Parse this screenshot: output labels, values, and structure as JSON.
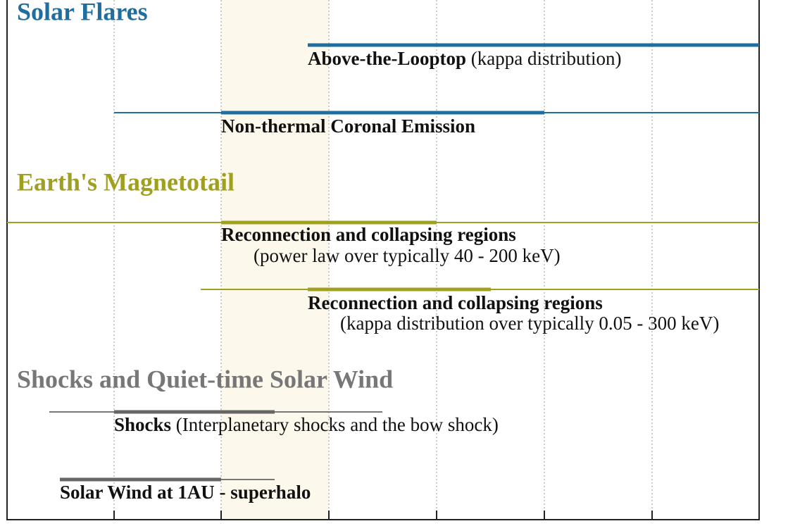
{
  "sections": [
    {
      "title": "Solar Flares",
      "entries": [
        {
          "label": "Above-the-Looptop",
          "note": "(kappa distribution)"
        },
        {
          "label": "Non-thermal Coronal Emission"
        }
      ]
    },
    {
      "title": "Earth's Magnetotail",
      "entries": [
        {
          "label": "Reconnection and collapsing regions",
          "note": "(power law over typically 40 - 200 keV)"
        },
        {
          "label": "Reconnection and collapsing regions",
          "note": "(kappa distribution over typically 0.05 - 300 keV)"
        }
      ]
    },
    {
      "title": "Shocks and Quiet-time Solar Wind",
      "entries": [
        {
          "label": "Shocks",
          "note": "(Interplanetary shocks and the bow shock)"
        },
        {
          "label": "Solar Wind at 1AU - superhalo"
        }
      ]
    }
  ]
}
